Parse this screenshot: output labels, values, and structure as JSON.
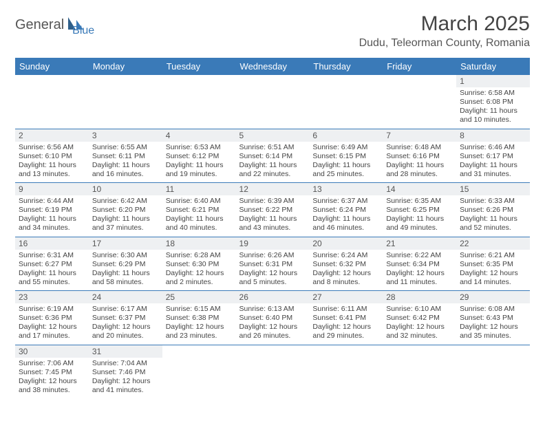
{
  "logo": {
    "text1": "General",
    "text2": "Blue"
  },
  "title": "March 2025",
  "location": "Dudu, Teleorman County, Romania",
  "colors": {
    "header_bg": "#3a7ab8",
    "header_text": "#ffffff",
    "border": "#3a7ab8",
    "daynum_bg": "#eef0f2",
    "text": "#444444"
  },
  "weekdays": [
    "Sunday",
    "Monday",
    "Tuesday",
    "Wednesday",
    "Thursday",
    "Friday",
    "Saturday"
  ],
  "labels": {
    "sunrise": "Sunrise:",
    "sunset": "Sunset:",
    "daylight": "Daylight:"
  },
  "leading_blanks": 6,
  "days": [
    {
      "n": "1",
      "sunrise": "6:58 AM",
      "sunset": "6:08 PM",
      "daylight": "11 hours and 10 minutes."
    },
    {
      "n": "2",
      "sunrise": "6:56 AM",
      "sunset": "6:10 PM",
      "daylight": "11 hours and 13 minutes."
    },
    {
      "n": "3",
      "sunrise": "6:55 AM",
      "sunset": "6:11 PM",
      "daylight": "11 hours and 16 minutes."
    },
    {
      "n": "4",
      "sunrise": "6:53 AM",
      "sunset": "6:12 PM",
      "daylight": "11 hours and 19 minutes."
    },
    {
      "n": "5",
      "sunrise": "6:51 AM",
      "sunset": "6:14 PM",
      "daylight": "11 hours and 22 minutes."
    },
    {
      "n": "6",
      "sunrise": "6:49 AM",
      "sunset": "6:15 PM",
      "daylight": "11 hours and 25 minutes."
    },
    {
      "n": "7",
      "sunrise": "6:48 AM",
      "sunset": "6:16 PM",
      "daylight": "11 hours and 28 minutes."
    },
    {
      "n": "8",
      "sunrise": "6:46 AM",
      "sunset": "6:17 PM",
      "daylight": "11 hours and 31 minutes."
    },
    {
      "n": "9",
      "sunrise": "6:44 AM",
      "sunset": "6:19 PM",
      "daylight": "11 hours and 34 minutes."
    },
    {
      "n": "10",
      "sunrise": "6:42 AM",
      "sunset": "6:20 PM",
      "daylight": "11 hours and 37 minutes."
    },
    {
      "n": "11",
      "sunrise": "6:40 AM",
      "sunset": "6:21 PM",
      "daylight": "11 hours and 40 minutes."
    },
    {
      "n": "12",
      "sunrise": "6:39 AM",
      "sunset": "6:22 PM",
      "daylight": "11 hours and 43 minutes."
    },
    {
      "n": "13",
      "sunrise": "6:37 AM",
      "sunset": "6:24 PM",
      "daylight": "11 hours and 46 minutes."
    },
    {
      "n": "14",
      "sunrise": "6:35 AM",
      "sunset": "6:25 PM",
      "daylight": "11 hours and 49 minutes."
    },
    {
      "n": "15",
      "sunrise": "6:33 AM",
      "sunset": "6:26 PM",
      "daylight": "11 hours and 52 minutes."
    },
    {
      "n": "16",
      "sunrise": "6:31 AM",
      "sunset": "6:27 PM",
      "daylight": "11 hours and 55 minutes."
    },
    {
      "n": "17",
      "sunrise": "6:30 AM",
      "sunset": "6:29 PM",
      "daylight": "11 hours and 58 minutes."
    },
    {
      "n": "18",
      "sunrise": "6:28 AM",
      "sunset": "6:30 PM",
      "daylight": "12 hours and 2 minutes."
    },
    {
      "n": "19",
      "sunrise": "6:26 AM",
      "sunset": "6:31 PM",
      "daylight": "12 hours and 5 minutes."
    },
    {
      "n": "20",
      "sunrise": "6:24 AM",
      "sunset": "6:32 PM",
      "daylight": "12 hours and 8 minutes."
    },
    {
      "n": "21",
      "sunrise": "6:22 AM",
      "sunset": "6:34 PM",
      "daylight": "12 hours and 11 minutes."
    },
    {
      "n": "22",
      "sunrise": "6:21 AM",
      "sunset": "6:35 PM",
      "daylight": "12 hours and 14 minutes."
    },
    {
      "n": "23",
      "sunrise": "6:19 AM",
      "sunset": "6:36 PM",
      "daylight": "12 hours and 17 minutes."
    },
    {
      "n": "24",
      "sunrise": "6:17 AM",
      "sunset": "6:37 PM",
      "daylight": "12 hours and 20 minutes."
    },
    {
      "n": "25",
      "sunrise": "6:15 AM",
      "sunset": "6:38 PM",
      "daylight": "12 hours and 23 minutes."
    },
    {
      "n": "26",
      "sunrise": "6:13 AM",
      "sunset": "6:40 PM",
      "daylight": "12 hours and 26 minutes."
    },
    {
      "n": "27",
      "sunrise": "6:11 AM",
      "sunset": "6:41 PM",
      "daylight": "12 hours and 29 minutes."
    },
    {
      "n": "28",
      "sunrise": "6:10 AM",
      "sunset": "6:42 PM",
      "daylight": "12 hours and 32 minutes."
    },
    {
      "n": "29",
      "sunrise": "6:08 AM",
      "sunset": "6:43 PM",
      "daylight": "12 hours and 35 minutes."
    },
    {
      "n": "30",
      "sunrise": "7:06 AM",
      "sunset": "7:45 PM",
      "daylight": "12 hours and 38 minutes."
    },
    {
      "n": "31",
      "sunrise": "7:04 AM",
      "sunset": "7:46 PM",
      "daylight": "12 hours and 41 minutes."
    }
  ]
}
